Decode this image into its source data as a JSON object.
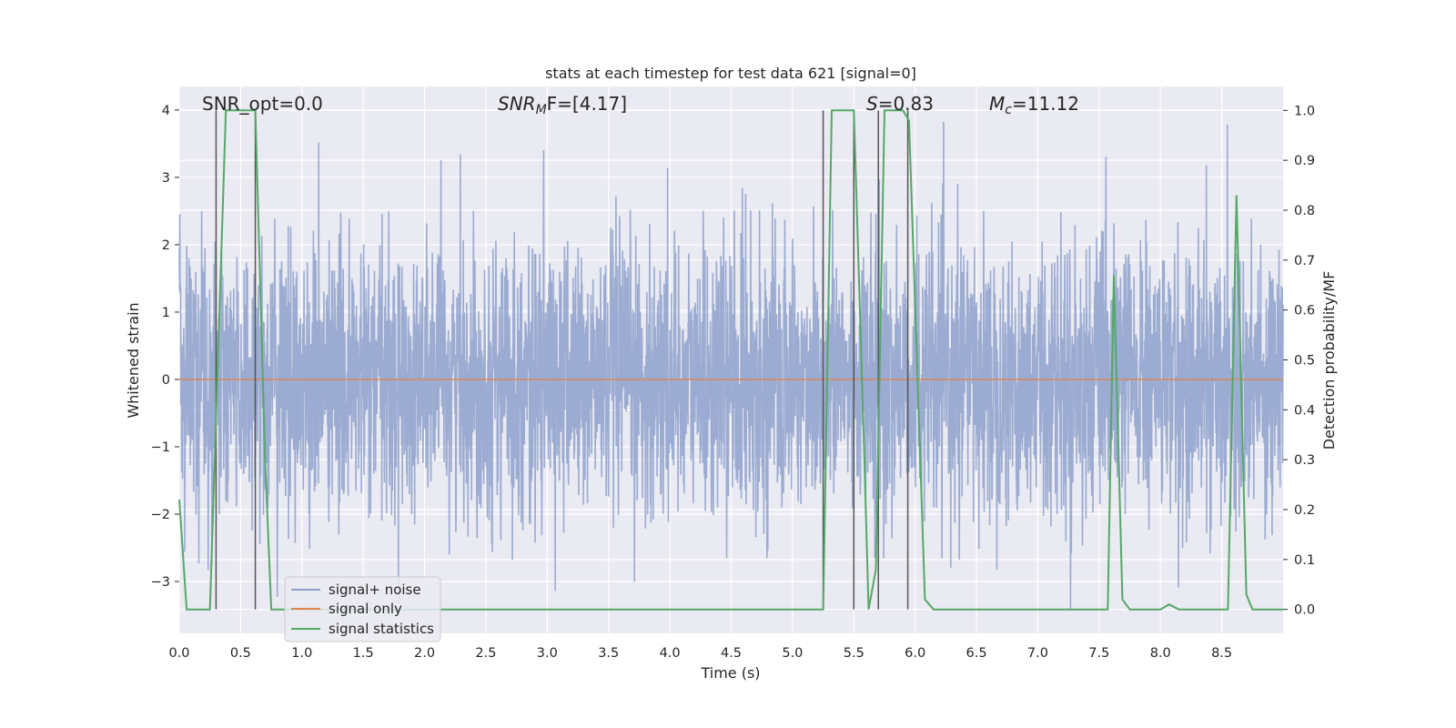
{
  "chart_data": {
    "type": "line",
    "title": "stats at each timestep for test data 621 [signal=0]",
    "xlabel": "Time (s)",
    "ylabel": "Whitened strain",
    "y2label": "Detection probability/MF",
    "xlim": [
      0,
      9
    ],
    "ylim": [
      -3.77,
      4.35
    ],
    "y2lim": [
      -0.048,
      1.048
    ],
    "xticks": [
      "0.0",
      "0.5",
      "1.0",
      "1.5",
      "2.0",
      "2.5",
      "3.0",
      "3.5",
      "4.0",
      "4.5",
      "5.0",
      "5.5",
      "6.0",
      "6.5",
      "7.0",
      "7.5",
      "8.0",
      "8.5"
    ],
    "xtick_values": [
      0,
      0.5,
      1,
      1.5,
      2,
      2.5,
      3,
      3.5,
      4,
      4.5,
      5,
      5.5,
      6,
      6.5,
      7,
      7.5,
      8,
      8.5
    ],
    "yticks": [
      "−3",
      "−2",
      "−1",
      "0",
      "1",
      "2",
      "3",
      "4"
    ],
    "ytick_values": [
      -3,
      -2,
      -1,
      0,
      1,
      2,
      3,
      4
    ],
    "y2ticks": [
      "0.0",
      "0.1",
      "0.2",
      "0.3",
      "0.4",
      "0.5",
      "0.6",
      "0.7",
      "0.8",
      "0.9",
      "1.0"
    ],
    "y2tick_values": [
      0,
      0.1,
      0.2,
      0.3,
      0.4,
      0.5,
      0.6,
      0.7,
      0.8,
      0.9,
      1.0
    ],
    "grid": true,
    "legend_position": "lower-left",
    "colors": {
      "noise": "#8da0cb",
      "signal_only": "#dd8452",
      "statistics": "#55a868",
      "markers": "#555555",
      "background": "#eaeaf2",
      "grid": "#ffffff"
    },
    "annotations": {
      "snr_opt": "SNR_opt=0.0",
      "snr_mf_prefix": "SNR",
      "snr_mf_sub": "M",
      "snr_mf_suffix": "F=[4.17]",
      "s_prefix": "S",
      "s_suffix": "=0.83",
      "mc_prefix": "M",
      "mc_sub": "c",
      "mc_suffix": "=11.12"
    },
    "series": [
      {
        "name": "signal+ noise",
        "kind": "noise",
        "noise_sigma": 1.0,
        "duration": 9.0
      },
      {
        "name": "signal only",
        "x": [
          0,
          9
        ],
        "y": [
          0,
          0
        ]
      },
      {
        "name": "signal statistics",
        "axis": "right",
        "x": [
          0,
          0.06,
          0.25,
          0.38,
          0.62,
          0.7,
          0.75,
          0.82,
          0.95,
          2.3,
          2.45,
          5.0,
          5.25,
          5.32,
          5.5,
          5.58,
          5.62,
          5.68,
          5.75,
          5.9,
          5.95,
          6.08,
          6.15,
          7.0,
          7.57,
          7.62,
          7.69,
          7.75,
          8.0,
          8.07,
          8.15,
          8.55,
          8.62,
          8.7,
          8.75,
          9.0
        ],
        "y": [
          0.22,
          0.0,
          0.0,
          1.0,
          1.0,
          0.3,
          0.0,
          0.0,
          0.0,
          0.0,
          0.0,
          0.0,
          0.0,
          1.0,
          1.0,
          0.35,
          0.0,
          0.08,
          1.0,
          1.0,
          0.98,
          0.02,
          0.0,
          0.0,
          0.0,
          0.67,
          0.02,
          0.0,
          0.0,
          0.01,
          0.0,
          0.0,
          0.83,
          0.03,
          0.0,
          0.0
        ]
      }
    ],
    "detection_markers": [
      0.3,
      0.62,
      5.25,
      5.5,
      5.7,
      5.94
    ]
  }
}
